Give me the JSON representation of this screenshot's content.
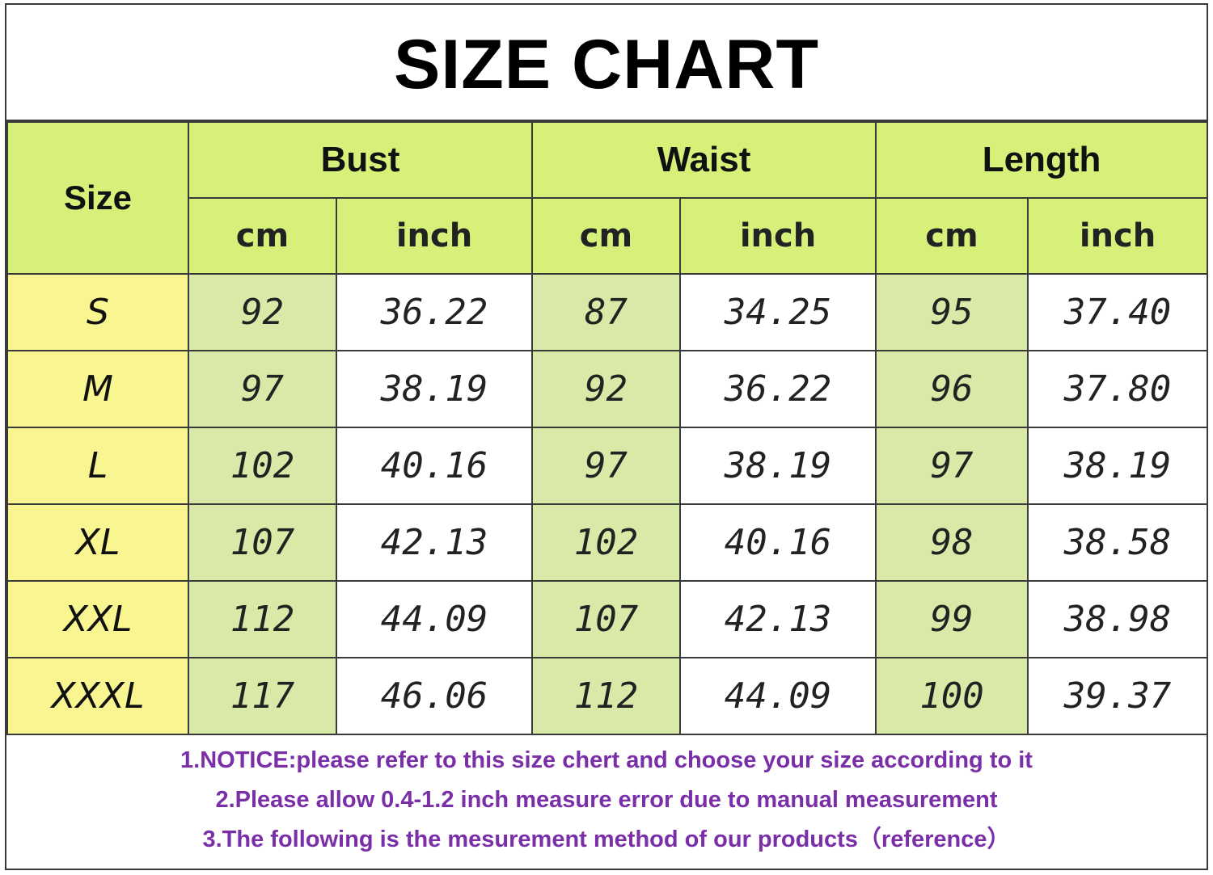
{
  "title": "SIZE CHART",
  "table": {
    "size_header": "Size",
    "groups": [
      {
        "label": "Bust",
        "units": [
          "cm",
          "inch"
        ]
      },
      {
        "label": "Waist",
        "units": [
          "cm",
          "inch"
        ]
      },
      {
        "label": "Length",
        "units": [
          "cm",
          "inch"
        ]
      }
    ],
    "rows": [
      {
        "size": "S",
        "bust_cm": "92",
        "bust_inch": "36.22",
        "waist_cm": "87",
        "waist_inch": "34.25",
        "length_cm": "95",
        "length_inch": "37.40"
      },
      {
        "size": "M",
        "bust_cm": "97",
        "bust_inch": "38.19",
        "waist_cm": "92",
        "waist_inch": "36.22",
        "length_cm": "96",
        "length_inch": "37.80"
      },
      {
        "size": "L",
        "bust_cm": "102",
        "bust_inch": "40.16",
        "waist_cm": "97",
        "waist_inch": "38.19",
        "length_cm": "97",
        "length_inch": "38.19"
      },
      {
        "size": "XL",
        "bust_cm": "107",
        "bust_inch": "42.13",
        "waist_cm": "102",
        "waist_inch": "40.16",
        "length_cm": "98",
        "length_inch": "38.58"
      },
      {
        "size": "XXL",
        "bust_cm": "112",
        "bust_inch": "44.09",
        "waist_cm": "107",
        "waist_inch": "42.13",
        "length_cm": "99",
        "length_inch": "38.98"
      },
      {
        "size": "XXXL",
        "bust_cm": "117",
        "bust_inch": "46.06",
        "waist_cm": "112",
        "waist_inch": "44.09",
        "length_cm": "100",
        "length_inch": "39.37"
      }
    ]
  },
  "notes": [
    "1.NOTICE:please refer to this size chert and choose your size according to it",
    "2.Please allow 0.4-1.2 inch measure error due to manual measurement",
    "3.The following is the mesurement method of our products（reference）"
  ],
  "colors": {
    "header_green": "#d6f07a",
    "size_yellow": "#f9f590",
    "value_green": "#d8e9a8",
    "note_purple": "#7a2fa8"
  }
}
